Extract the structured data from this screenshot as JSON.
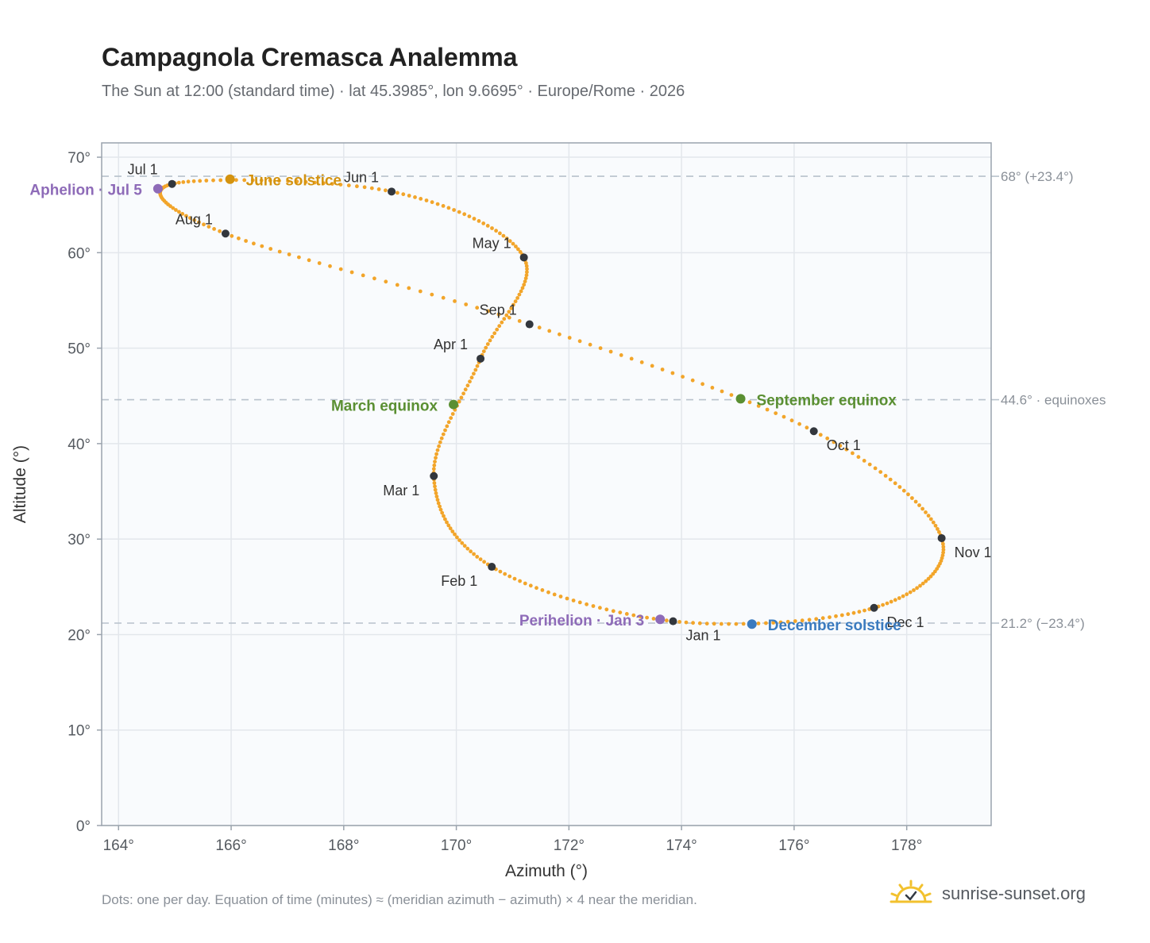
{
  "header": {
    "title": "Campagnola Cremasca Analemma",
    "subtitle": "The Sun at 12:00 (standard time) · lat 45.3985°, lon 9.6695° · Europe/Rome · 2026"
  },
  "footer": {
    "note": "Dots: one per day. Equation of time (minutes) ≈ (meridian azimuth − azimuth) × 4 near the meridian.",
    "brand": "sunrise-sunset.org",
    "brand_icon": "sun-icon"
  },
  "colors": {
    "curve": "#f2a52a",
    "month_marker": "#33373d",
    "solstice_june": "#d4930f",
    "solstice_december": "#3b7bbf",
    "equinox": "#5a8f32",
    "apsis": "#8e6bb8",
    "reference_line": "#b8c2cc",
    "plot_bg": "#f9fbfd",
    "grid": "#e3e7ec"
  },
  "chart_data": {
    "type": "scatter",
    "xlabel": "Azimuth (°)",
    "ylabel": "Altitude (°)",
    "xlim": [
      163.7,
      179.5
    ],
    "ylim": [
      0,
      71.5
    ],
    "x_ticks": [
      164,
      166,
      168,
      170,
      172,
      174,
      176,
      178
    ],
    "x_tick_labels": [
      "164°",
      "166°",
      "168°",
      "170°",
      "172°",
      "174°",
      "176°",
      "178°"
    ],
    "y_ticks": [
      0,
      10,
      20,
      30,
      40,
      50,
      60,
      70
    ],
    "y_tick_labels": [
      "0°",
      "10°",
      "20°",
      "30°",
      "40°",
      "50°",
      "60°",
      "70°"
    ],
    "grid": true,
    "month_markers": [
      {
        "label": "Jan 1",
        "x": 173.85,
        "y": 21.4
      },
      {
        "label": "Feb 1",
        "x": 170.63,
        "y": 27.1
      },
      {
        "label": "Mar 1",
        "x": 169.6,
        "y": 36.6
      },
      {
        "label": "Apr 1",
        "x": 170.43,
        "y": 48.9
      },
      {
        "label": "May 1",
        "x": 171.2,
        "y": 59.5
      },
      {
        "label": "Jun 1",
        "x": 168.85,
        "y": 66.4
      },
      {
        "label": "Jul 1",
        "x": 164.95,
        "y": 67.2
      },
      {
        "label": "Aug 1",
        "x": 165.9,
        "y": 62.0
      },
      {
        "label": "Sep 1",
        "x": 171.3,
        "y": 52.5
      },
      {
        "label": "Oct 1",
        "x": 176.35,
        "y": 41.3
      },
      {
        "label": "Nov 1",
        "x": 178.62,
        "y": 30.1
      },
      {
        "label": "Dec 1",
        "x": 177.42,
        "y": 22.8
      }
    ],
    "events": [
      {
        "label": "June solstice",
        "x": 165.98,
        "y": 67.7,
        "kind": "solstice_june"
      },
      {
        "label": "December solstice",
        "x": 175.25,
        "y": 21.1,
        "kind": "solstice_december"
      },
      {
        "label": "March equinox",
        "x": 169.95,
        "y": 44.1,
        "kind": "equinox"
      },
      {
        "label": "September equinox",
        "x": 175.05,
        "y": 44.7,
        "kind": "equinox"
      },
      {
        "label": "Aphelion · Jul 5",
        "x": 164.7,
        "y": 66.7,
        "kind": "apsis"
      },
      {
        "label": "Perihelion · Jan 3",
        "x": 173.62,
        "y": 21.6,
        "kind": "apsis"
      }
    ],
    "reference_lines": [
      {
        "y": 68.0,
        "label": "68° (+23.4°)"
      },
      {
        "y": 44.6,
        "label": "44.6° · equinoxes"
      },
      {
        "y": 21.2,
        "label": "21.2° (−23.4°)"
      }
    ]
  }
}
